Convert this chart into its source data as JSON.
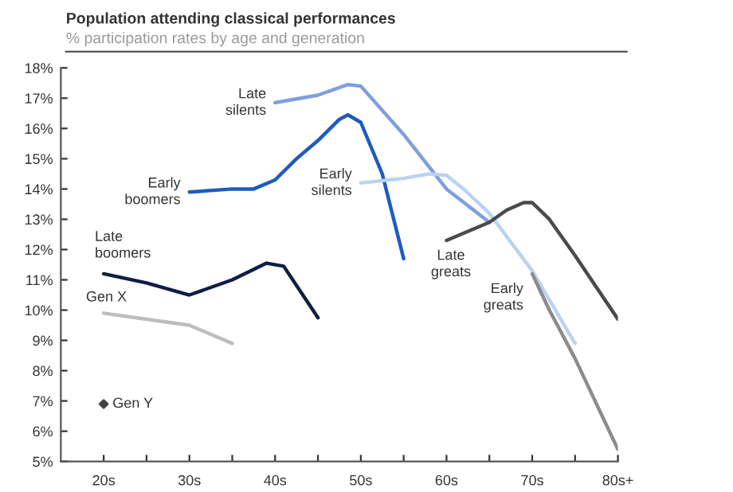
{
  "chart_data": {
    "type": "line",
    "title": "Population attending classical performances",
    "subtitle": "% participation rates by age and generation",
    "xlim": [
      15,
      80
    ],
    "xticks": [
      {
        "value": 20,
        "label": "20s"
      },
      {
        "value": 25,
        "label": null
      },
      {
        "value": 30,
        "label": "30s"
      },
      {
        "value": 35,
        "label": null
      },
      {
        "value": 40,
        "label": "40s"
      },
      {
        "value": 45,
        "label": null
      },
      {
        "value": 50,
        "label": "50s"
      },
      {
        "value": 55,
        "label": null
      },
      {
        "value": 60,
        "label": "60s"
      },
      {
        "value": 65,
        "label": null
      },
      {
        "value": 70,
        "label": "70s"
      },
      {
        "value": 75,
        "label": null
      },
      {
        "value": 80,
        "label": "80s+"
      }
    ],
    "ylim": [
      5,
      18
    ],
    "yticks": [
      {
        "value": 5,
        "label": "5%"
      },
      {
        "value": 6,
        "label": "6%"
      },
      {
        "value": 7,
        "label": "7%"
      },
      {
        "value": 8,
        "label": "8%"
      },
      {
        "value": 9,
        "label": "9%"
      },
      {
        "value": 10,
        "label": "10%"
      },
      {
        "value": 11,
        "label": "11%"
      },
      {
        "value": 12,
        "label": "12%"
      },
      {
        "value": 13,
        "label": "13%"
      },
      {
        "value": 14,
        "label": "14%"
      },
      {
        "value": 15,
        "label": "15%"
      },
      {
        "value": 16,
        "label": "16%"
      },
      {
        "value": 17,
        "label": "17%"
      },
      {
        "value": 18,
        "label": "18%"
      }
    ],
    "grid": false,
    "legend": false,
    "series": [
      {
        "name": "Gen Y",
        "type": "scatter",
        "marker": "diamond",
        "color": "#404040",
        "x": [
          20
        ],
        "values": [
          6.9
        ]
      },
      {
        "name": "Gen X",
        "color": "#bdbdbd",
        "x": [
          20,
          25,
          30,
          35
        ],
        "values": [
          9.9,
          9.7,
          9.5,
          8.9
        ]
      },
      {
        "name": "Late boomers",
        "color": "#0f1e45",
        "x": [
          20,
          25,
          30,
          35,
          39,
          41,
          45
        ],
        "values": [
          11.2,
          10.9,
          10.5,
          11.0,
          11.55,
          11.45,
          9.75
        ]
      },
      {
        "name": "Early boomers",
        "color": "#1f5bbf",
        "x": [
          30,
          35,
          37.5,
          40,
          42.5,
          45,
          47.5,
          48.5,
          50,
          52.5,
          55
        ],
        "values": [
          13.9,
          14.0,
          14.0,
          14.3,
          15.0,
          15.6,
          16.3,
          16.45,
          16.2,
          14.5,
          11.7
        ]
      },
      {
        "name": "Late silents",
        "color": "#7f9ee0",
        "x": [
          40,
          45,
          48.5,
          50,
          55,
          60,
          65
        ],
        "values": [
          16.85,
          17.1,
          17.45,
          17.4,
          15.8,
          14.0,
          12.9
        ]
      },
      {
        "name": "Early silents",
        "color": "#b9d3f0",
        "x": [
          50,
          55,
          58,
          60,
          62,
          65,
          70,
          75
        ],
        "values": [
          14.2,
          14.35,
          14.5,
          14.45,
          14.0,
          13.2,
          11.3,
          8.9
        ]
      },
      {
        "name": "Late greats",
        "color": "#4a4a4a",
        "x": [
          60,
          65,
          67,
          69,
          70,
          72,
          75,
          80
        ],
        "values": [
          12.3,
          12.9,
          13.3,
          13.55,
          13.55,
          13.0,
          11.8,
          9.7
        ]
      },
      {
        "name": "Early greats",
        "color": "#8c8c8c",
        "x": [
          70,
          72,
          75,
          80
        ],
        "values": [
          11.2,
          10.0,
          8.4,
          5.4
        ]
      }
    ]
  }
}
